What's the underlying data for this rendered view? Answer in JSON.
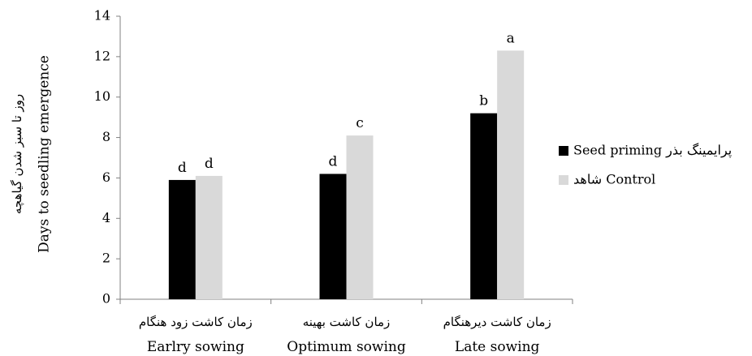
{
  "chart_data": {
    "type": "bar",
    "ylabel_en": "Days to seedling emergence",
    "ylabel_fa": "روز تا سبز شدن گیاهچه",
    "ylim": [
      0,
      14
    ],
    "yticks": [
      "0",
      "2",
      "4",
      "6",
      "8",
      "10",
      "12",
      "14"
    ],
    "grid": false,
    "legend_position": "right",
    "categories": [
      {
        "fa": "زمان کاشت زود هنگام",
        "en": "Earlry sowing"
      },
      {
        "fa": "زمان کاشت بهینه",
        "en": "Optimum sowing"
      },
      {
        "fa": "زمان کاشت دیرهنگام",
        "en": "Late sowing"
      }
    ],
    "series": [
      {
        "name": "Seed priming پرایمینگ بذر",
        "color": "#000000",
        "values": [
          5.9,
          6.2,
          9.2
        ],
        "labels": [
          "d",
          "d",
          "b"
        ]
      },
      {
        "name": "شاهد Control",
        "color": "#d9d9d9",
        "values": [
          6.1,
          8.1,
          12.3
        ],
        "labels": [
          "d",
          "c",
          "a"
        ]
      }
    ]
  }
}
